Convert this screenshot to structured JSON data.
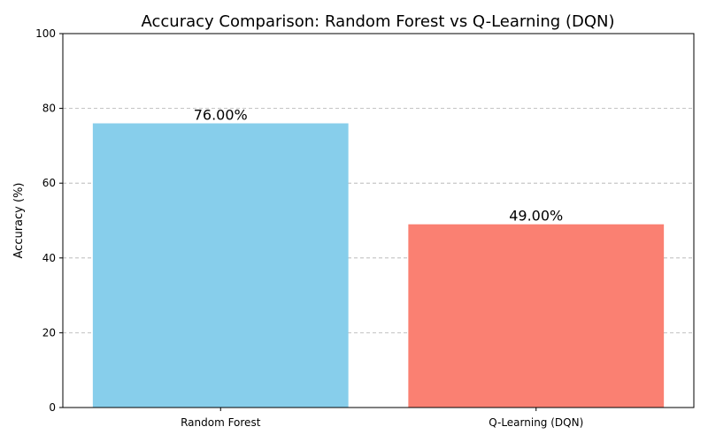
{
  "chart_data": {
    "type": "bar",
    "title": "Accuracy Comparison: Random Forest vs Q-Learning (DQN)",
    "xlabel": "",
    "ylabel": "Accuracy (%)",
    "categories": [
      "Random Forest",
      "Q-Learning (DQN)"
    ],
    "values": [
      76.0,
      49.0
    ],
    "data_labels": [
      "76.00%",
      "49.00%"
    ],
    "colors": [
      "#87ceeb",
      "#fa8072"
    ],
    "ylim": [
      0,
      100
    ],
    "yticks": [
      0,
      20,
      40,
      60,
      80,
      100
    ],
    "grid": "y-dashed",
    "legend": "none"
  }
}
